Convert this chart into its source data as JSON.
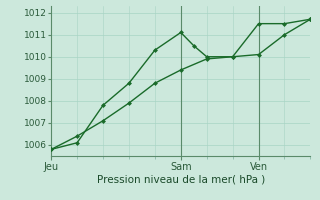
{
  "xlabel": "Pression niveau de la mer( hPa )",
  "background_color": "#cce8dc",
  "grid_color": "#a8d4c4",
  "line_color": "#1a6b2a",
  "vline_color": "#5a8a6a",
  "ylim": [
    1005.5,
    1012.3
  ],
  "xlim": [
    0,
    10
  ],
  "yticks": [
    1006,
    1007,
    1008,
    1009,
    1010,
    1011,
    1012
  ],
  "ytick_labels": [
    "1006",
    "1007",
    "1008",
    "1009",
    "1010",
    "1011",
    "1012"
  ],
  "day_ticks": [
    0,
    5,
    8
  ],
  "day_labels": [
    "Jeu",
    "Sam",
    "Ven"
  ],
  "line1_x": [
    0,
    1,
    2,
    3,
    4,
    5,
    5.5,
    6,
    7,
    8,
    9,
    10
  ],
  "line1_y": [
    1005.8,
    1006.1,
    1007.8,
    1008.8,
    1010.3,
    1011.1,
    1010.5,
    1010.0,
    1010.0,
    1011.5,
    1011.5,
    1011.7
  ],
  "line2_x": [
    0,
    1,
    2,
    3,
    4,
    5,
    6,
    7,
    8,
    9,
    10
  ],
  "line2_y": [
    1005.8,
    1006.4,
    1007.1,
    1007.9,
    1008.8,
    1009.4,
    1009.9,
    1010.0,
    1010.1,
    1011.0,
    1011.7
  ],
  "vline_x": [
    5,
    8
  ],
  "font_size_xlabel": 7.5,
  "font_size_yticks": 6.5,
  "font_size_xticks": 7,
  "marker_size": 2.5,
  "line_width": 1.0
}
